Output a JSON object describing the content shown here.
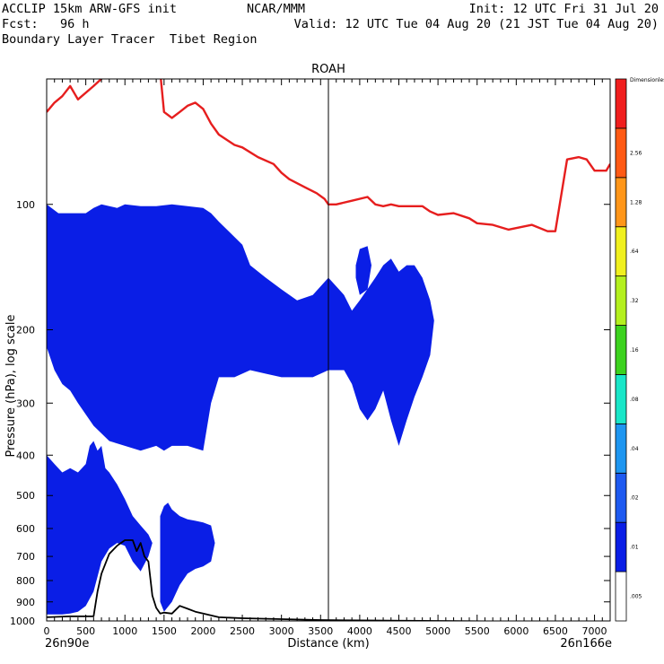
{
  "header": {
    "line1_left": "ACCLIP 15km ARW-GFS init",
    "line1_center": "NCAR/MMM",
    "line1_right": "Init: 12 UTC Fri 31 Jul 20",
    "line2_left": "Fcst:   96 h",
    "line2_right": "Valid: 12 UTC Tue 04 Aug 20 (21 JST Tue 04 Aug 20)",
    "line3_left": "Boundary Layer Tracer  Tibet Region"
  },
  "chart_data": {
    "type": "heatmap",
    "title": "ROAH",
    "xlabel": "Distance (km)",
    "ylabel": "Pressure (hPa), log scale",
    "x_start_label": "26n90e",
    "x_end_label": "26n166e",
    "xlim": [
      0,
      7200
    ],
    "x_ticks": [
      0,
      500,
      1000,
      1500,
      2000,
      2500,
      3000,
      3500,
      4000,
      4500,
      5000,
      5500,
      6000,
      6500,
      7000
    ],
    "y_log": true,
    "ylim": [
      1000,
      50
    ],
    "y_ticks": [
      100,
      200,
      300,
      400,
      500,
      600,
      700,
      800,
      900,
      1000
    ],
    "marker_x": 3600,
    "colorbar": {
      "levels": [
        ".005",
        ".01",
        ".02",
        ".04",
        ".08",
        ".16",
        ".32",
        ".64",
        "1.28",
        "2.56",
        "Dimensionless"
      ],
      "colors": [
        "#ffffff",
        "#0a1ee6",
        "#1e5af0",
        "#1e96f0",
        "#19e6c8",
        "#3cd21e",
        "#b4f01e",
        "#f0f01e",
        "#ff9619",
        "#ff5a14",
        "#f01e1e"
      ]
    },
    "tropopause_line": {
      "name": "",
      "color": "#e61e1e",
      "x": [
        0,
        100,
        200,
        300,
        400,
        600,
        800,
        900,
        1000,
        1200,
        1300,
        1400,
        1450,
        1500,
        1600,
        1700,
        1800,
        1900,
        2000,
        2100,
        2200,
        2300,
        2400,
        2500,
        2700,
        2900,
        3000,
        3100,
        3300,
        3450,
        3550,
        3600,
        3700,
        3900,
        4100,
        4200,
        4300,
        4400,
        4500,
        4800,
        4900,
        5000,
        5200,
        5400,
        5500,
        5700,
        5900,
        6200,
        6400,
        6500,
        6650,
        6800,
        6900,
        7000,
        7150,
        7200
      ],
      "y": [
        60,
        57,
        55,
        52,
        56,
        52,
        48,
        45,
        43,
        42,
        42,
        42,
        48,
        60,
        62,
        60,
        58,
        57,
        59,
        64,
        68,
        70,
        72,
        73,
        77,
        80,
        84,
        87,
        91,
        94,
        97,
        100,
        100,
        98,
        96,
        100,
        101,
        100,
        101,
        101,
        104,
        106,
        105,
        108,
        111,
        112,
        115,
        112,
        116,
        116,
        78,
        77,
        78,
        83,
        83,
        80
      ]
    },
    "terrain_line": {
      "name": "",
      "color": "#000000",
      "x": [
        0,
        300,
        600,
        650,
        700,
        800,
        900,
        1000,
        1100,
        1150,
        1200,
        1250,
        1300,
        1350,
        1400,
        1450,
        1500,
        1600,
        1700,
        1800,
        1900,
        2000,
        2200,
        2500,
        3000,
        3500,
        4000,
        5000,
        6000,
        7200
      ],
      "y": [
        980,
        975,
        975,
        850,
        770,
        690,
        660,
        640,
        640,
        680,
        650,
        700,
        720,
        870,
        930,
        960,
        955,
        960,
        920,
        935,
        950,
        960,
        980,
        985,
        990,
        995,
        997,
        1000,
        1003,
        1005
      ]
    },
    "tracer_regions": [
      {
        "level": 1,
        "color": "#0a1ee6",
        "x": [
          0,
          150,
          500,
          600,
          700,
          800,
          900,
          1000,
          1200,
          1400,
          1600,
          1800,
          2000,
          2100,
          2200,
          2500,
          2600,
          2800,
          3000,
          3200,
          3400,
          3600,
          3800,
          3900,
          4000,
          4200,
          4300,
          4400,
          4500,
          4600,
          4700,
          4800,
          4900,
          4950,
          4900,
          4800,
          4700,
          4600,
          4500,
          4400,
          4300,
          4200,
          4100,
          4000,
          3900,
          3800,
          3700,
          3600,
          3400,
          3200,
          3000,
          2800,
          2600,
          2400,
          2200,
          2100,
          2000,
          1800,
          1600,
          1500,
          1400,
          1200,
          1000,
          800,
          600,
          400,
          300,
          200,
          100,
          0
        ],
        "y": [
          100,
          105,
          105,
          102,
          100,
          101,
          102,
          100,
          101,
          101,
          100,
          101,
          102,
          105,
          110,
          125,
          140,
          150,
          160,
          170,
          165,
          150,
          165,
          180,
          170,
          150,
          140,
          135,
          145,
          140,
          140,
          150,
          170,
          190,
          230,
          260,
          290,
          330,
          380,
          330,
          280,
          310,
          330,
          310,
          270,
          250,
          250,
          250,
          260,
          260,
          260,
          255,
          250,
          260,
          260,
          300,
          390,
          380,
          380,
          390,
          380,
          390,
          380,
          370,
          340,
          300,
          280,
          270,
          250,
          220
        ]
      },
      {
        "level": 1,
        "color": "#0a1ee6",
        "x": [
          0,
          100,
          200,
          300,
          400,
          500,
          550,
          600,
          650,
          700,
          750,
          800,
          900,
          1000,
          1100,
          1200,
          1300,
          1350,
          1300,
          1200,
          1100,
          1000,
          900,
          800,
          700,
          600,
          500,
          400,
          300,
          200,
          100,
          0
        ],
        "y": [
          400,
          420,
          440,
          430,
          440,
          420,
          380,
          370,
          390,
          380,
          430,
          440,
          470,
          510,
          560,
          590,
          620,
          650,
          700,
          760,
          720,
          660,
          650,
          670,
          720,
          850,
          920,
          950,
          960,
          965,
          965,
          965
        ]
      },
      {
        "level": 1,
        "color": "#0a1ee6",
        "x": [
          1450,
          1500,
          1550,
          1600,
          1700,
          1800,
          1900,
          2000,
          2100,
          2150,
          2100,
          2000,
          1900,
          1800,
          1700,
          1600,
          1500,
          1450
        ],
        "y": [
          560,
          530,
          520,
          540,
          560,
          570,
          575,
          580,
          590,
          650,
          720,
          740,
          750,
          770,
          820,
          900,
          950,
          900
        ]
      },
      {
        "level": 1,
        "color": "#0a1ee6",
        "x": [
          3950,
          4000,
          4100,
          4150,
          4100,
          4000,
          3950
        ],
        "y": [
          140,
          128,
          126,
          140,
          160,
          165,
          150
        ]
      }
    ]
  }
}
